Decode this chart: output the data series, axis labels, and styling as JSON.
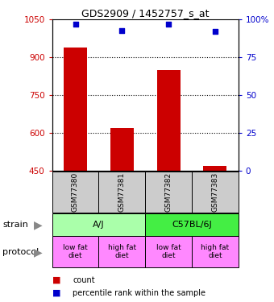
{
  "title": "GDS2909 / 1452757_s_at",
  "samples": [
    "GSM77380",
    "GSM77381",
    "GSM77382",
    "GSM77383"
  ],
  "bar_values": [
    940,
    620,
    850,
    468
  ],
  "bar_bottom": 450,
  "percentile_values": [
    97,
    93,
    97,
    92
  ],
  "ylim_left": [
    450,
    1050
  ],
  "ylim_right": [
    0,
    100
  ],
  "yticks_left": [
    450,
    600,
    750,
    900,
    1050
  ],
  "yticks_right": [
    0,
    25,
    50,
    75,
    100
  ],
  "bar_color": "#cc0000",
  "percentile_color": "#0000cc",
  "grid_color": "#000000",
  "strain_labels": [
    "A/J",
    "C57BL/6J"
  ],
  "strain_colors": [
    "#aaffaa",
    "#44ee44"
  ],
  "protocol_labels": [
    "low fat\ndiet",
    "high fat\ndiet",
    "low fat\ndiet",
    "high fat\ndiet"
  ],
  "protocol_color": "#ff88ff",
  "sample_bg_color": "#cccccc",
  "legend_count_color": "#cc0000",
  "legend_percentile_color": "#0000cc"
}
